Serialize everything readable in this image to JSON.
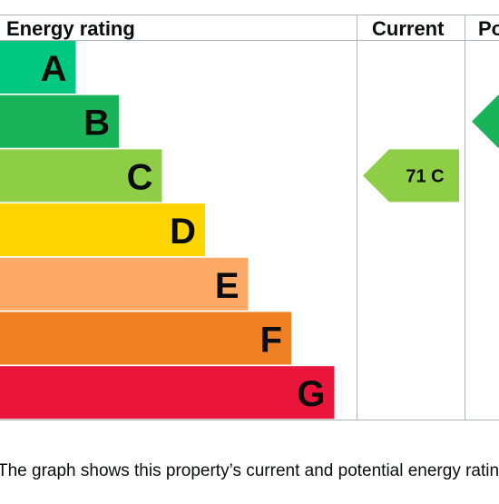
{
  "header": {
    "rating_label": "Energy rating",
    "current_label": "Current",
    "potential_label": "Po"
  },
  "chart_data": {
    "type": "bar",
    "title": "",
    "categories": [
      "A",
      "B",
      "C",
      "D",
      "E",
      "F",
      "G"
    ],
    "values": [
      1,
      2,
      3,
      4,
      5,
      6,
      7
    ],
    "colors": [
      "#00c781",
      "#19b459",
      "#8dce46",
      "#ffd500",
      "#fcaa65",
      "#ef8023",
      "#e9153b"
    ],
    "current": {
      "label": "71 C",
      "band": "C",
      "color": "#8dce46"
    },
    "potential": {
      "label": "",
      "band": "B",
      "color": "#19b459"
    }
  },
  "caption": "The graph shows this property’s current and potential energy rating."
}
